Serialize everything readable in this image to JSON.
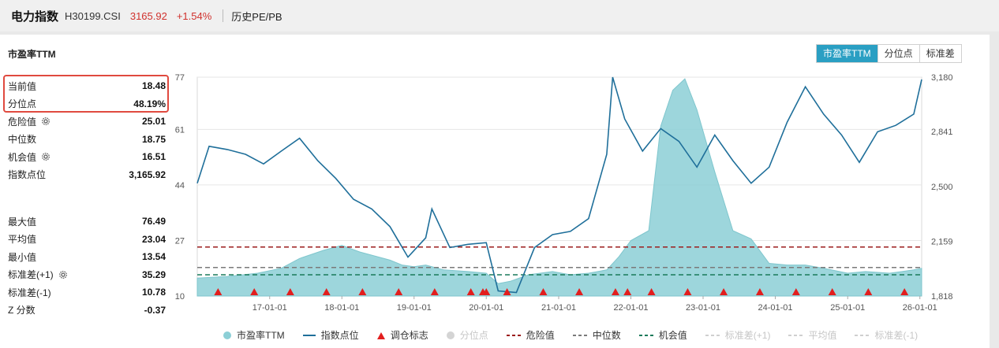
{
  "header": {
    "name": "电力指数",
    "code": "H30199.CSI",
    "price": "3165.92",
    "change": "+1.54%",
    "history_label": "历史PE/PB"
  },
  "panel": {
    "title": "市盈率TTM",
    "tabs": [
      "市盈率TTM",
      "分位点",
      "标准差"
    ],
    "active_tab": "市盈率TTM"
  },
  "stats_top": [
    {
      "label": "当前值",
      "value": "18.48",
      "gear": false
    },
    {
      "label": "分位点",
      "value": "48.19%",
      "gear": false
    },
    {
      "label": "危险值",
      "value": "25.01",
      "gear": true
    },
    {
      "label": "中位数",
      "value": "18.75",
      "gear": false
    },
    {
      "label": "机会值",
      "value": "16.51",
      "gear": true
    },
    {
      "label": "指数点位",
      "value": "3,165.92",
      "gear": false
    }
  ],
  "stats_bottom": [
    {
      "label": "最大值",
      "value": "76.49",
      "gear": false
    },
    {
      "label": "平均值",
      "value": "23.04",
      "gear": false
    },
    {
      "label": "最小值",
      "value": "13.54",
      "gear": false
    },
    {
      "label": "标准差(+1)",
      "value": "35.29",
      "gear": true
    },
    {
      "label": "标准差(-1)",
      "value": "10.78",
      "gear": false
    },
    {
      "label": "Z 分数",
      "value": "-0.37",
      "gear": false
    }
  ],
  "legend": [
    {
      "label": "市盈率TTM",
      "kind": "dot",
      "color": "#8ccfd6",
      "dim": false
    },
    {
      "label": "指数点位",
      "kind": "line",
      "color": "#1f6f9a",
      "dim": false
    },
    {
      "label": "调仓标志",
      "kind": "triangle",
      "color": "#e21e1e",
      "dim": false
    },
    {
      "label": "分位点",
      "kind": "dot",
      "color": "#d4d4d4",
      "dim": true
    },
    {
      "label": "危险值",
      "kind": "dash",
      "color": "#9b1c1c",
      "dim": false
    },
    {
      "label": "中位数",
      "kind": "dash",
      "color": "#7a7a7a",
      "dim": false
    },
    {
      "label": "机会值",
      "kind": "dash",
      "color": "#1a7a5a",
      "dim": false
    },
    {
      "label": "标准差(+1)",
      "kind": "dash",
      "color": "#cfcfcf",
      "dim": true
    },
    {
      "label": "平均值",
      "kind": "dash",
      "color": "#cfcfcf",
      "dim": true
    },
    {
      "label": "标准差(-1)",
      "kind": "dash",
      "color": "#cfcfcf",
      "dim": true
    }
  ],
  "colors": {
    "pe_fill": "#8ccfd6",
    "index_line": "#1f6f9a",
    "danger": "#9b1c1c",
    "median": "#7a7a7a",
    "opportunity": "#1a7a5a",
    "marker": "#e21e1e",
    "accent": "#2a9fc3",
    "price_red": "#d0312d"
  },
  "chart_data": {
    "type": "area",
    "x_start": "2016-01-01",
    "x_end": "2026-01-10",
    "x_ticks": [
      "17-01-01",
      "18-01-01",
      "19-01-01",
      "20-01-01",
      "21-01-01",
      "22-01-01",
      "23-01-01",
      "24-01-01",
      "25-01-01",
      "26-01-01"
    ],
    "y_left": {
      "ticks": [
        77,
        61,
        44,
        27,
        10
      ],
      "ylim": [
        10,
        77
      ],
      "label": ""
    },
    "y_right": {
      "ticks": [
        "3,180",
        "2,841",
        "2,500",
        "2,159",
        "1,818"
      ],
      "ylim": [
        1818,
        3180
      ],
      "label": ""
    },
    "reference_lines": {
      "danger": 25.01,
      "median": 18.75,
      "opportunity": 16.51
    },
    "series": [
      {
        "name": "市盈率TTM",
        "axis": "left",
        "style": "area",
        "points": [
          [
            "2016-01-01",
            15.5
          ],
          [
            "2016-06-01",
            16.0
          ],
          [
            "2016-11-01",
            17.0
          ],
          [
            "2017-03-01",
            18.5
          ],
          [
            "2017-06-01",
            21.5
          ],
          [
            "2017-10-01",
            24.0
          ],
          [
            "2018-01-01",
            25.5
          ],
          [
            "2018-04-01",
            23.5
          ],
          [
            "2018-09-01",
            21.0
          ],
          [
            "2018-11-01",
            19.5
          ],
          [
            "2019-01-01",
            19.0
          ],
          [
            "2019-03-01",
            19.5
          ],
          [
            "2019-06-01",
            18.0
          ],
          [
            "2019-10-01",
            17.5
          ],
          [
            "2020-01-01",
            17.0
          ],
          [
            "2020-03-01",
            13.8
          ],
          [
            "2020-05-01",
            14.5
          ],
          [
            "2020-08-01",
            16.5
          ],
          [
            "2020-12-01",
            17.5
          ],
          [
            "2021-03-01",
            16.5
          ],
          [
            "2021-06-01",
            17.0
          ],
          [
            "2021-09-01",
            18.0
          ],
          [
            "2021-11-01",
            22.0
          ],
          [
            "2022-01-01",
            27.0
          ],
          [
            "2022-04-01",
            30.0
          ],
          [
            "2022-06-01",
            62.0
          ],
          [
            "2022-08-01",
            73.0
          ],
          [
            "2022-10-01",
            76.5
          ],
          [
            "2022-12-01",
            67.0
          ],
          [
            "2023-03-01",
            48.0
          ],
          [
            "2023-06-01",
            30.0
          ],
          [
            "2023-09-01",
            27.5
          ],
          [
            "2023-12-01",
            20.0
          ],
          [
            "2024-03-01",
            19.5
          ],
          [
            "2024-06-01",
            19.5
          ],
          [
            "2024-09-01",
            18.5
          ],
          [
            "2025-01-01",
            17.0
          ],
          [
            "2025-04-01",
            17.5
          ],
          [
            "2025-08-01",
            17.0
          ],
          [
            "2025-12-01",
            18.0
          ],
          [
            "2026-01-10",
            18.48
          ]
        ]
      },
      {
        "name": "指数点位",
        "axis": "right",
        "style": "line",
        "points": [
          [
            "2016-01-01",
            2520
          ],
          [
            "2016-03-01",
            2750
          ],
          [
            "2016-06-01",
            2730
          ],
          [
            "2016-09-01",
            2700
          ],
          [
            "2016-12-01",
            2640
          ],
          [
            "2017-03-01",
            2720
          ],
          [
            "2017-06-01",
            2800
          ],
          [
            "2017-09-01",
            2660
          ],
          [
            "2017-12-01",
            2550
          ],
          [
            "2018-03-01",
            2420
          ],
          [
            "2018-06-01",
            2360
          ],
          [
            "2018-09-01",
            2250
          ],
          [
            "2018-12-01",
            2060
          ],
          [
            "2019-03-01",
            2180
          ],
          [
            "2019-04-01",
            2360
          ],
          [
            "2019-07-01",
            2120
          ],
          [
            "2019-10-01",
            2140
          ],
          [
            "2020-01-01",
            2150
          ],
          [
            "2020-03-01",
            1850
          ],
          [
            "2020-06-01",
            1840
          ],
          [
            "2020-09-01",
            2120
          ],
          [
            "2020-12-01",
            2200
          ],
          [
            "2021-03-01",
            2220
          ],
          [
            "2021-06-01",
            2300
          ],
          [
            "2021-09-01",
            2700
          ],
          [
            "2021-10-01",
            3180
          ],
          [
            "2021-12-01",
            2920
          ],
          [
            "2022-03-01",
            2720
          ],
          [
            "2022-06-01",
            2860
          ],
          [
            "2022-09-01",
            2780
          ],
          [
            "2022-12-01",
            2620
          ],
          [
            "2023-03-01",
            2820
          ],
          [
            "2023-06-01",
            2660
          ],
          [
            "2023-09-01",
            2520
          ],
          [
            "2023-12-01",
            2620
          ],
          [
            "2024-03-01",
            2900
          ],
          [
            "2024-06-01",
            3120
          ],
          [
            "2024-09-01",
            2950
          ],
          [
            "2024-12-01",
            2820
          ],
          [
            "2025-03-01",
            2650
          ],
          [
            "2025-06-01",
            2840
          ],
          [
            "2025-09-01",
            2880
          ],
          [
            "2025-12-01",
            2950
          ],
          [
            "2026-01-10",
            3166
          ]
        ]
      }
    ],
    "rebalance_markers": [
      "2016-04-15",
      "2016-10-15",
      "2017-04-15",
      "2017-10-15",
      "2018-04-15",
      "2018-10-15",
      "2019-04-15",
      "2019-10-15",
      "2019-12-15",
      "2020-01-01",
      "2020-04-15",
      "2020-10-15",
      "2021-04-15",
      "2021-10-15",
      "2021-12-15",
      "2022-04-15",
      "2022-10-15",
      "2023-04-15",
      "2023-10-15",
      "2024-04-15",
      "2024-10-15",
      "2025-04-15",
      "2025-10-15"
    ]
  }
}
